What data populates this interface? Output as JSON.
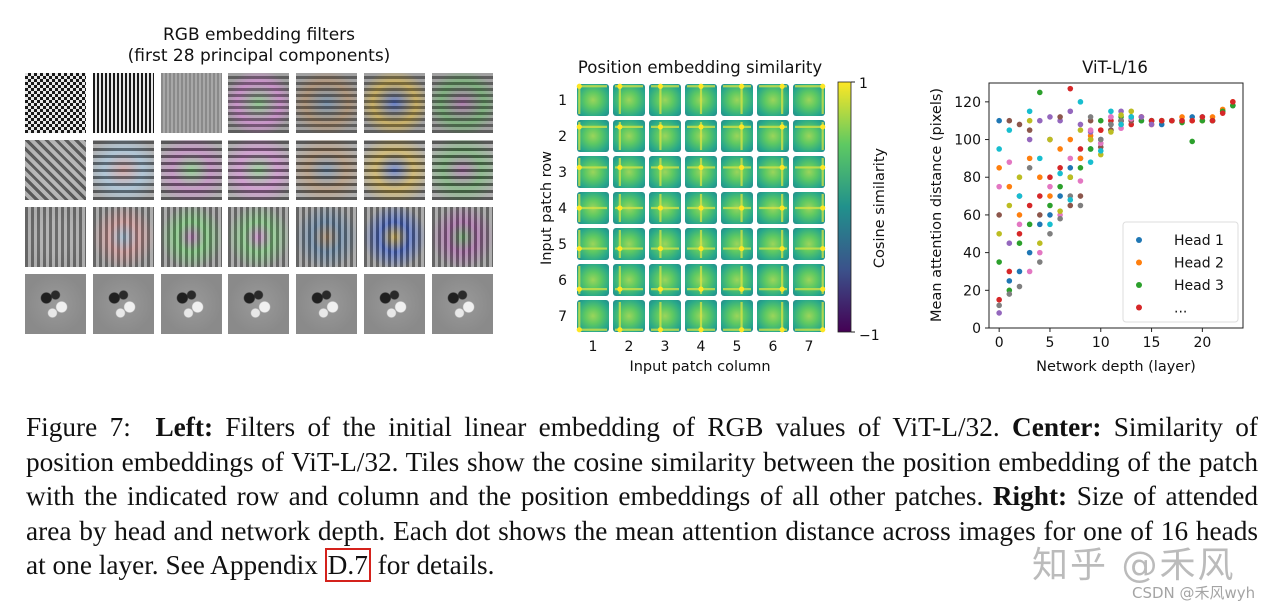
{
  "left_panel": {
    "title_line1": "RGB embedding filters",
    "title_line2": "(first 28 principal components)",
    "rows": 4,
    "cols": 7
  },
  "chart_data": [
    {
      "type": "heatmap",
      "title": "Position embedding similarity",
      "xlabel": "Input patch column",
      "ylabel": "Input patch row",
      "x_ticks": [
        "1",
        "2",
        "3",
        "4",
        "5",
        "6",
        "7"
      ],
      "y_ticks": [
        "1",
        "2",
        "3",
        "4",
        "5",
        "6",
        "7"
      ],
      "colorbar_label": "Cosine similarity",
      "colorbar_ticks": [
        "1",
        "−1"
      ],
      "colorbar_range": [
        -1,
        1
      ],
      "colors": {
        "low": "#440154",
        "mid": "#21918c",
        "high": "#fde725"
      }
    },
    {
      "type": "scatter",
      "title": "ViT-L/16",
      "xlabel": "Network depth (layer)",
      "ylabel": "Mean attention distance (pixels)",
      "xlim": [
        -1,
        24
      ],
      "ylim": [
        0,
        130
      ],
      "x_ticks": [
        0,
        5,
        10,
        15,
        20
      ],
      "y_ticks": [
        0,
        20,
        40,
        60,
        80,
        100,
        120
      ],
      "legend": [
        "Head 1",
        "Head 2",
        "Head 3",
        "..."
      ],
      "legend_position": "bottom-right",
      "palette": [
        "#1f77b4",
        "#ff7f0e",
        "#2ca02c",
        "#d62728",
        "#9467bd",
        "#8c564b",
        "#e377c2",
        "#7f7f7f",
        "#bcbd22",
        "#17becf"
      ],
      "series": [
        {
          "name": "Head 1",
          "layers": [
            0,
            1,
            2,
            3,
            4,
            5,
            6,
            7,
            8,
            9,
            10,
            11,
            12,
            13,
            14,
            15,
            16,
            17,
            18,
            19,
            20,
            21,
            22,
            23
          ],
          "values": [
            110,
            25,
            30,
            40,
            55,
            60,
            70,
            85,
            90,
            95,
            100,
            108,
            110,
            112,
            110,
            110,
            108,
            110,
            110,
            112,
            112,
            110,
            115,
            118
          ]
        },
        {
          "name": "Head 2",
          "layers": [
            0,
            1,
            2,
            3,
            4,
            5,
            6,
            7,
            8,
            9,
            10,
            11,
            12,
            13,
            14,
            15,
            16,
            17,
            18,
            19,
            20,
            21,
            22,
            23
          ],
          "values": [
            85,
            75,
            60,
            90,
            80,
            70,
            95,
            100,
            90,
            102,
            105,
            110,
            108,
            110,
            112,
            108,
            110,
            110,
            112,
            110,
            110,
            112,
            116,
            120
          ]
        },
        {
          "name": "Head 3",
          "layers": [
            0,
            1,
            2,
            3,
            4,
            5,
            6,
            7,
            8,
            9,
            10,
            11,
            12,
            13,
            14,
            15,
            16,
            17,
            18,
            19,
            20,
            21,
            22,
            23
          ],
          "values": [
            35,
            20,
            45,
            55,
            125,
            65,
            75,
            80,
            85,
            95,
            110,
            105,
            112,
            112,
            110,
            110,
            110,
            110,
            109,
            99,
            110,
            110,
            115,
            118
          ]
        },
        {
          "name": "...",
          "layers": [
            0,
            1,
            2,
            3,
            4,
            5,
            6,
            7,
            8,
            9,
            10,
            11,
            12,
            13,
            14,
            15,
            16,
            17,
            18,
            19,
            20,
            21,
            22,
            23
          ],
          "values": [
            15,
            30,
            50,
            65,
            70,
            80,
            85,
            127,
            95,
            100,
            105,
            110,
            110,
            108,
            112,
            110,
            110,
            110,
            110,
            110,
            112,
            110,
            114,
            120
          ]
        },
        {
          "name": "",
          "layers": [
            0,
            1,
            2,
            3,
            4,
            5,
            6,
            7,
            8,
            9,
            10,
            11,
            12,
            13,
            14,
            15
          ],
          "values": [
            8,
            45,
            70,
            100,
            110,
            112,
            110,
            115,
            108,
            104,
            98,
            112,
            115,
            110,
            112,
            108
          ]
        },
        {
          "name": "",
          "layers": [
            0,
            1,
            2,
            3,
            4,
            5,
            6,
            7,
            8,
            9,
            10,
            11,
            12,
            13
          ],
          "values": [
            60,
            110,
            108,
            105,
            60,
            100,
            112,
            65,
            70,
            110,
            96,
            105,
            110,
            110
          ]
        },
        {
          "name": "",
          "layers": [
            0,
            1,
            2,
            3,
            4,
            5,
            6,
            7,
            8,
            9,
            10,
            11,
            12,
            13
          ],
          "values": [
            75,
            88,
            55,
            30,
            40,
            75,
            60,
            90,
            78,
            105,
            98,
            112,
            106,
            111
          ]
        },
        {
          "name": "",
          "layers": [
            0,
            1,
            2,
            3,
            4,
            5,
            6,
            7,
            8,
            9,
            10,
            11,
            12,
            13
          ],
          "values": [
            12,
            18,
            22,
            85,
            35,
            50,
            58,
            70,
            65,
            112,
            100,
            108,
            110,
            112
          ]
        },
        {
          "name": "",
          "layers": [
            0,
            1,
            2,
            3,
            4,
            5,
            6,
            7,
            8,
            9,
            10,
            11,
            12,
            13
          ],
          "values": [
            50,
            65,
            80,
            110,
            45,
            100,
            62,
            80,
            105,
            100,
            92,
            104,
            113,
            115
          ]
        },
        {
          "name": "",
          "layers": [
            0,
            1,
            2,
            3,
            4,
            5,
            6,
            7,
            8,
            9,
            10,
            11,
            12,
            13
          ],
          "values": [
            95,
            105,
            70,
            115,
            90,
            55,
            82,
            68,
            120,
            88,
            94,
            115,
            108,
            112
          ]
        }
      ]
    }
  ],
  "caption": {
    "figure_label": "Figure 7:",
    "left_bold": "Left:",
    "left_text": " Filters of the initial linear embedding of RGB values of ViT-L/32. ",
    "center_bold": "Center:",
    "center_text": " Similarity of position embeddings of ViT-L/32. Tiles show the cosine similarity between the position embedding of the patch with the indicated row and column and the position embeddings of all other patches. ",
    "right_bold": "Right:",
    "right_text": " Size of attended area by head and network depth. Each dot shows the mean attention distance across images for one of 16 heads at one layer. See Appendix ",
    "ref": "D.7",
    "tail": " for details."
  },
  "watermark": {
    "line1": "知乎 @禾风",
    "line2": "CSDN @禾风wyh"
  }
}
